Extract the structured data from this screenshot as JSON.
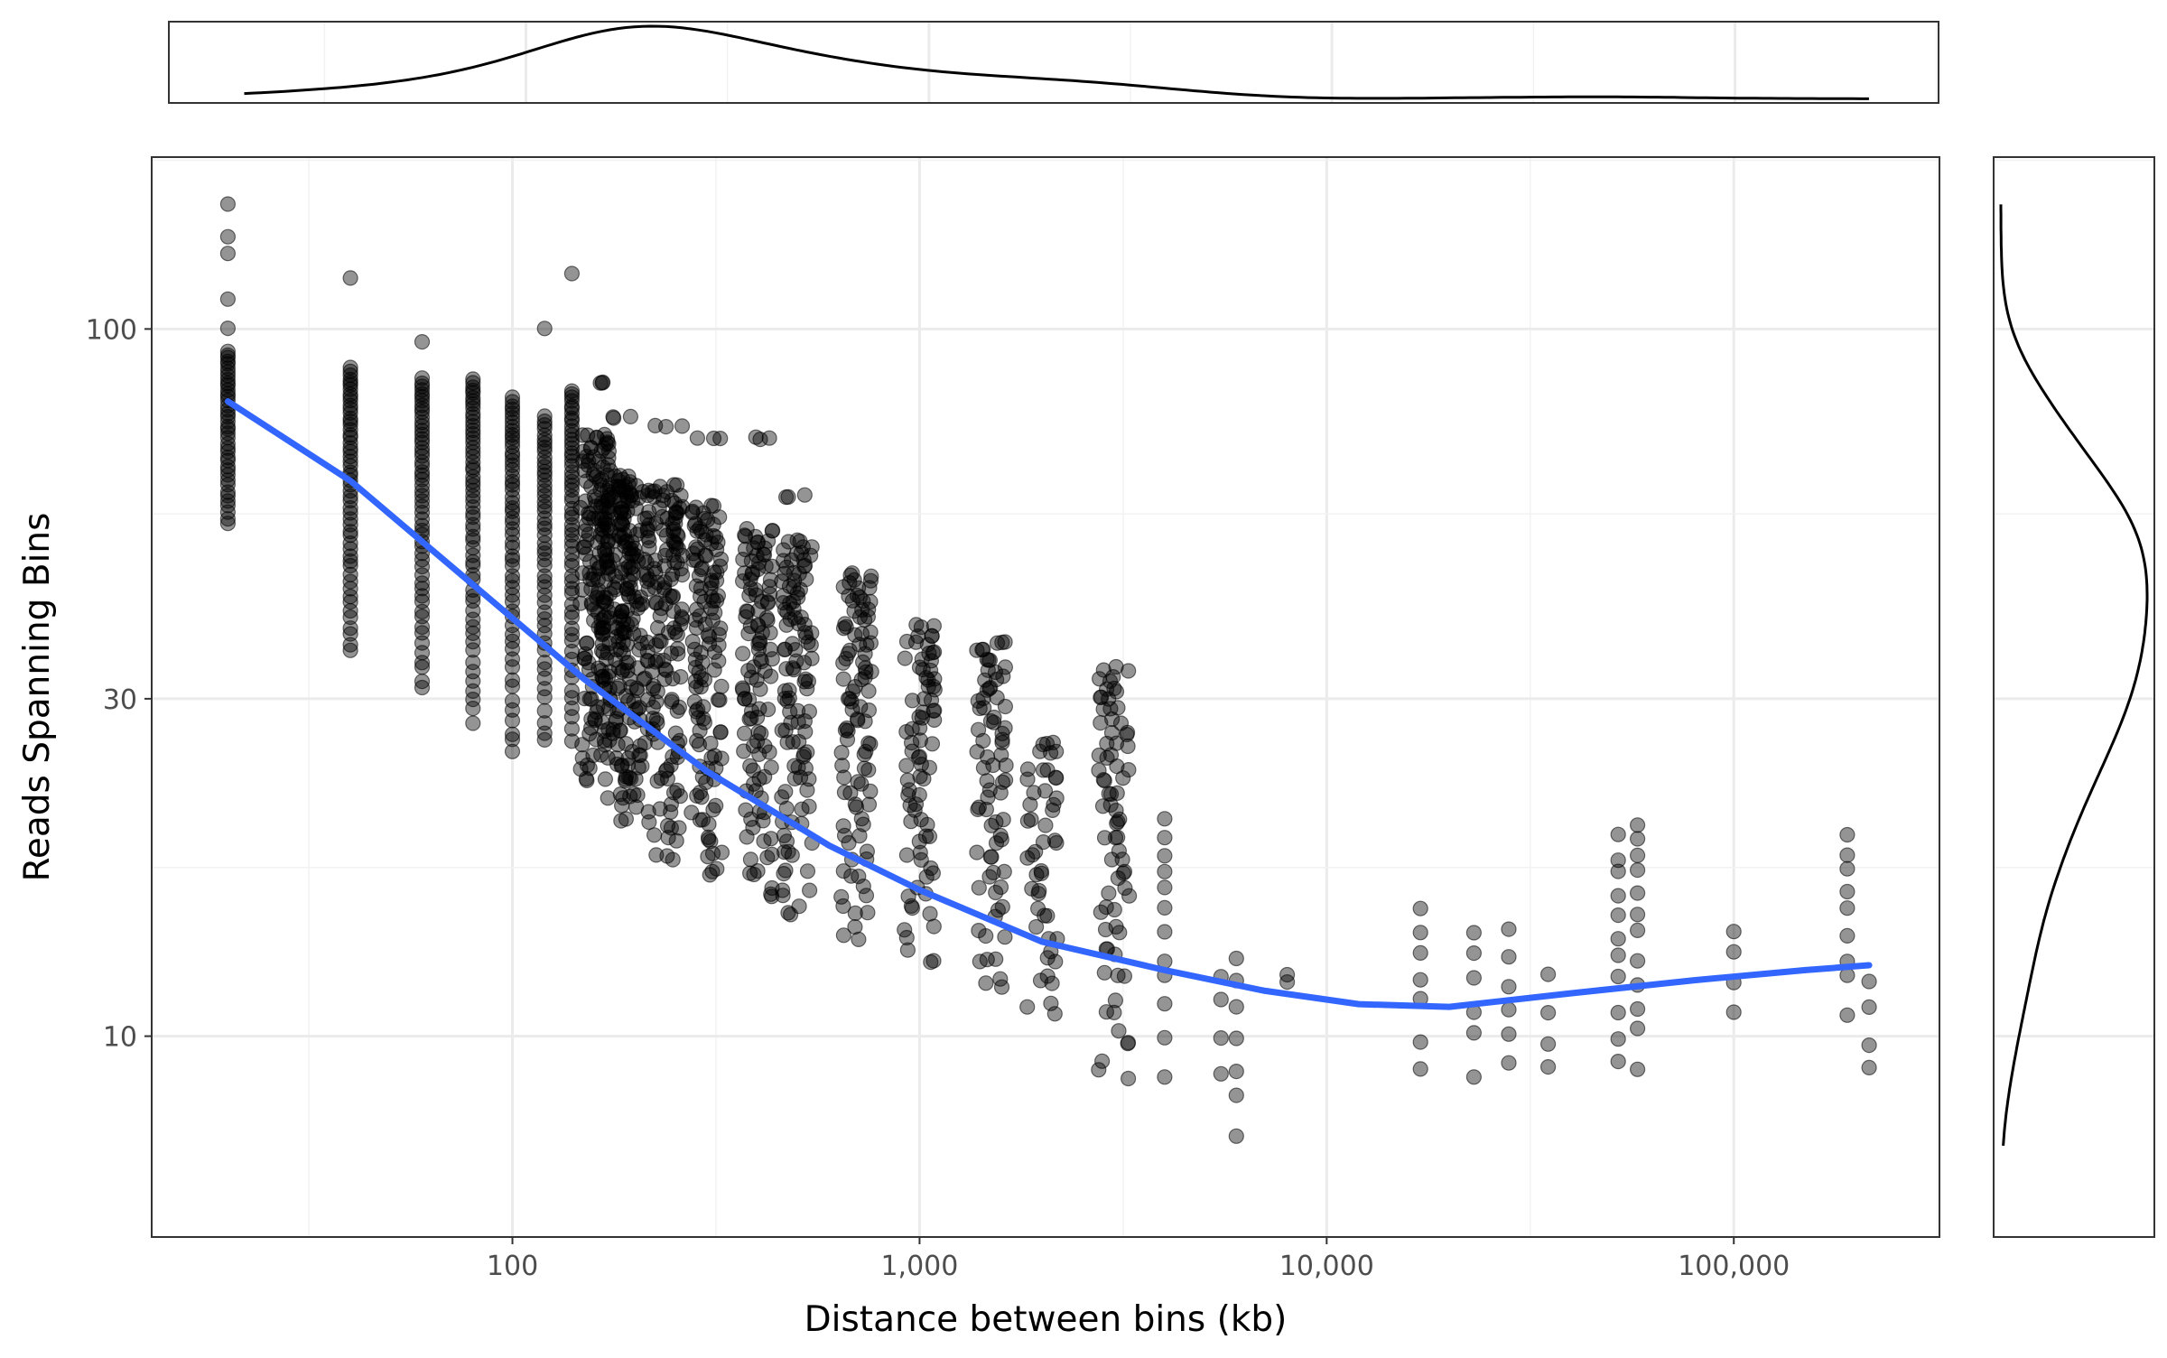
{
  "chart_data": {
    "type": "scatter",
    "title": "",
    "xlabel": "Distance between bins (kb)",
    "ylabel": "Reads Spanning Bins",
    "x_scale": "log10",
    "y_scale": "log10",
    "xlim": [
      13,
      320000
    ],
    "ylim": [
      5.2,
      175
    ],
    "x_major_ticks": [
      100,
      1000,
      10000,
      100000
    ],
    "x_tick_labels": [
      "100",
      "1,000",
      "10,000",
      "100,000"
    ],
    "y_major_ticks": [
      10,
      30,
      100
    ],
    "y_tick_labels": [
      "10",
      "30",
      "100"
    ],
    "grid": true,
    "legend": "none",
    "marginal_top": "density of x",
    "marginal_right": "density of y",
    "colors": {
      "points": "#000000",
      "smooth_line": "#3366ff",
      "grid": "#ebebeb"
    },
    "series": [
      {
        "type": "scatter",
        "columns": [
          {
            "x": 20,
            "y_min": 53,
            "y_max": 93,
            "outliers": [
              100,
              110,
              128,
              135,
              150
            ]
          },
          {
            "x": 40,
            "y_min": 35,
            "y_max": 88,
            "outliers": [
              118
            ]
          },
          {
            "x": 60,
            "y_min": 31,
            "y_max": 85,
            "outliers": [
              96
            ]
          },
          {
            "x": 80,
            "y_min": 28,
            "y_max": 85
          },
          {
            "x": 100,
            "y_min": 25,
            "y_max": 80
          },
          {
            "x": 120,
            "y_min": 26,
            "y_max": 75,
            "outliers": [
              100
            ]
          },
          {
            "x": 140,
            "y_min": 26,
            "y_max": 82,
            "outliers": [
              120
            ]
          },
          {
            "x": 160,
            "y_min": 23,
            "y_max": 71,
            "outliers": [
              84
            ]
          },
          {
            "x": 180,
            "y_min": 22,
            "y_max": 62,
            "outliers": [
              75
            ]
          },
          {
            "x": 200,
            "y_min": 20,
            "y_max": 60
          },
          {
            "x": 240,
            "y_min": 18,
            "y_max": 60,
            "outliers": [
              73
            ]
          },
          {
            "x": 300,
            "y_min": 17,
            "y_max": 56,
            "outliers": [
              70
            ]
          },
          {
            "x": 400,
            "y_min": 16,
            "y_max": 52,
            "outliers": [
              70
            ]
          },
          {
            "x": 500,
            "y_min": 15,
            "y_max": 50,
            "outliers": [
              58
            ]
          },
          {
            "x": 700,
            "y_min": 14,
            "y_max": 45
          },
          {
            "x": 1000,
            "y_min": 13,
            "y_max": 38
          },
          {
            "x": 1500,
            "y_min": 12,
            "y_max": 36
          },
          {
            "x": 2000,
            "y_min": 11,
            "y_max": 26
          },
          {
            "x": 3000,
            "y_min": 9,
            "y_max": 33
          },
          {
            "x": 4000,
            "y_min": 8.5,
            "y_max": 20
          },
          {
            "x": 5500,
            "y_min": 9,
            "y_max": 12
          },
          {
            "x": 6000,
            "y_min": 7,
            "y_max": 13
          },
          {
            "x": 8000,
            "y_min": 12,
            "y_max": 12
          },
          {
            "x": 17000,
            "y_min": 9,
            "y_max": 15
          },
          {
            "x": 23000,
            "y_min": 8.5,
            "y_max": 14
          },
          {
            "x": 28000,
            "y_min": 9,
            "y_max": 14
          },
          {
            "x": 35000,
            "y_min": 9,
            "y_max": 12
          },
          {
            "x": 52000,
            "y_min": 9,
            "y_max": 19
          },
          {
            "x": 58000,
            "y_min": 8.5,
            "y_max": 20
          },
          {
            "x": 100000,
            "y_min": 11,
            "y_max": 14
          },
          {
            "x": 190000,
            "y_min": 11,
            "y_max": 19
          },
          {
            "x": 215000,
            "y_min": 9,
            "y_max": 12
          }
        ]
      },
      {
        "name": "smoothed trend",
        "type": "line",
        "x": [
          20,
          40,
          80,
          150,
          300,
          600,
          1000,
          2000,
          4000,
          7000,
          12000,
          20000,
          40000,
          80000,
          150000,
          215000
        ],
        "y": [
          79,
          61,
          43.5,
          32,
          23.7,
          18.6,
          16.1,
          13.6,
          12.4,
          11.6,
          11.1,
          11.0,
          11.5,
          12.0,
          12.4,
          12.6
        ]
      }
    ]
  }
}
